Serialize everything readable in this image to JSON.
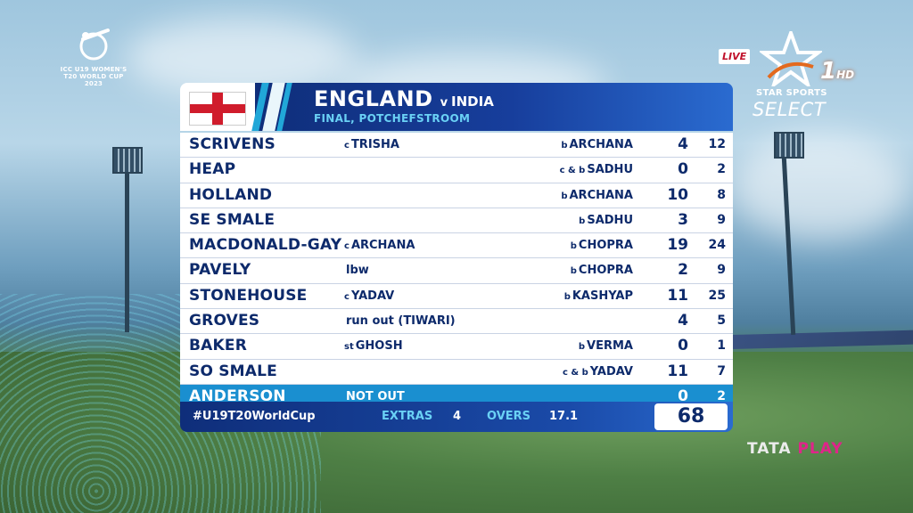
{
  "broadcast": {
    "tournament_logo_text": "ICC U19 WOMEN'S T20 WORLD CUP 2023",
    "live_badge": "LIVE",
    "channel_number": "1",
    "channel_quality": "HD",
    "channel_line1": "STAR SPORTS",
    "channel_line2": "SELECT",
    "provider_tata": "TATA",
    "provider_play": "PLAY"
  },
  "scorecard": {
    "batting_team": "ENGLAND",
    "vs": "v",
    "bowling_team": "INDIA",
    "venue": "FINAL, POTCHEFSTROOM",
    "batters": [
      {
        "name": "SCRIVENS",
        "how_prefix": "c",
        "how": "TRISHA",
        "bowl_prefix": "b",
        "bowler": "ARCHANA",
        "runs": "4",
        "balls": "12"
      },
      {
        "name": "HEAP",
        "how_prefix": "",
        "how": "",
        "bowl_prefix": "c & b",
        "bowler": "SADHU",
        "runs": "0",
        "balls": "2"
      },
      {
        "name": "HOLLAND",
        "how_prefix": "",
        "how": "",
        "bowl_prefix": "b",
        "bowler": "ARCHANA",
        "runs": "10",
        "balls": "8"
      },
      {
        "name": "SE SMALE",
        "how_prefix": "",
        "how": "",
        "bowl_prefix": "b",
        "bowler": "SADHU",
        "runs": "3",
        "balls": "9"
      },
      {
        "name": "MACDONALD-GAY",
        "how_prefix": "c",
        "how": "ARCHANA",
        "bowl_prefix": "b",
        "bowler": "CHOPRA",
        "runs": "19",
        "balls": "24"
      },
      {
        "name": "PAVELY",
        "how_prefix": "",
        "how": "lbw",
        "bowl_prefix": "b",
        "bowler": "CHOPRA",
        "runs": "2",
        "balls": "9"
      },
      {
        "name": "STONEHOUSE",
        "how_prefix": "c",
        "how": "YADAV",
        "bowl_prefix": "b",
        "bowler": "KASHYAP",
        "runs": "11",
        "balls": "25"
      },
      {
        "name": "GROVES",
        "how_prefix": "",
        "how": "run out (TIWARI)",
        "bowl_prefix": "",
        "bowler": "",
        "runs": "4",
        "balls": "5"
      },
      {
        "name": "BAKER",
        "how_prefix": "st",
        "how": "GHOSH",
        "bowl_prefix": "b",
        "bowler": "VERMA",
        "runs": "0",
        "balls": "1"
      },
      {
        "name": "SO SMALE",
        "how_prefix": "",
        "how": "",
        "bowl_prefix": "c & b",
        "bowler": "YADAV",
        "runs": "11",
        "balls": "7"
      },
      {
        "name": "ANDERSON",
        "how_prefix": "",
        "how": "NOT OUT",
        "bowl_prefix": "",
        "bowler": "",
        "runs": "0",
        "balls": "2"
      }
    ],
    "hashtag": "#U19T20WorldCup",
    "extras_label": "EXTRAS",
    "extras_value": "4",
    "overs_label": "OVERS",
    "overs_value": "17.1",
    "total": "68"
  },
  "colors": {
    "navy": "#0d2a6b",
    "accent_blue": "#1a8fd0",
    "light_cyan": "#6ad1f5",
    "england_red": "#d01c2c"
  }
}
